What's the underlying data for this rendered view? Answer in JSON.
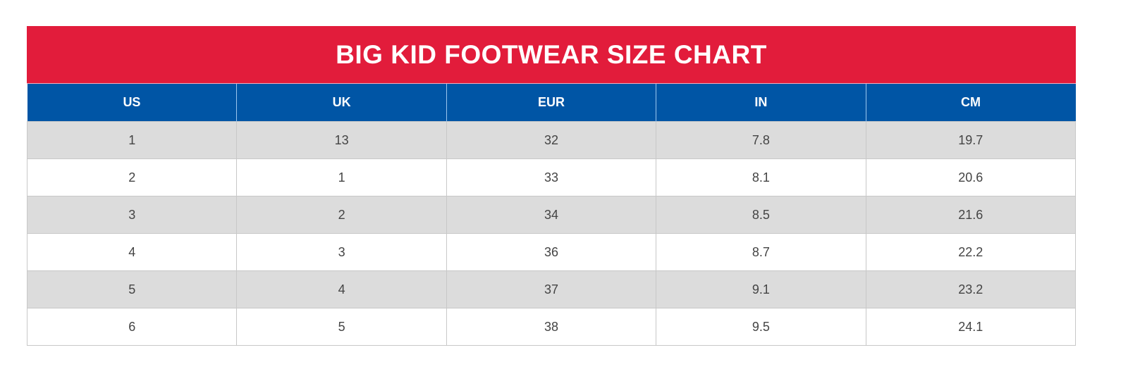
{
  "title": "BIG KID FOOTWEAR SIZE CHART",
  "colors": {
    "title_bg": "#e21c3b",
    "header_bg": "#0055a5",
    "row_alt_bg": "#dcdcdc",
    "row_bg": "#ffffff"
  },
  "table": {
    "headers": [
      "US",
      "UK",
      "EUR",
      "IN",
      "CM"
    ],
    "rows": [
      [
        "1",
        "13",
        "32",
        "7.8",
        "19.7"
      ],
      [
        "2",
        "1",
        "33",
        "8.1",
        "20.6"
      ],
      [
        "3",
        "2",
        "34",
        "8.5",
        "21.6"
      ],
      [
        "4",
        "3",
        "36",
        "8.7",
        "22.2"
      ],
      [
        "5",
        "4",
        "37",
        "9.1",
        "23.2"
      ],
      [
        "6",
        "5",
        "38",
        "9.5",
        "24.1"
      ]
    ]
  }
}
